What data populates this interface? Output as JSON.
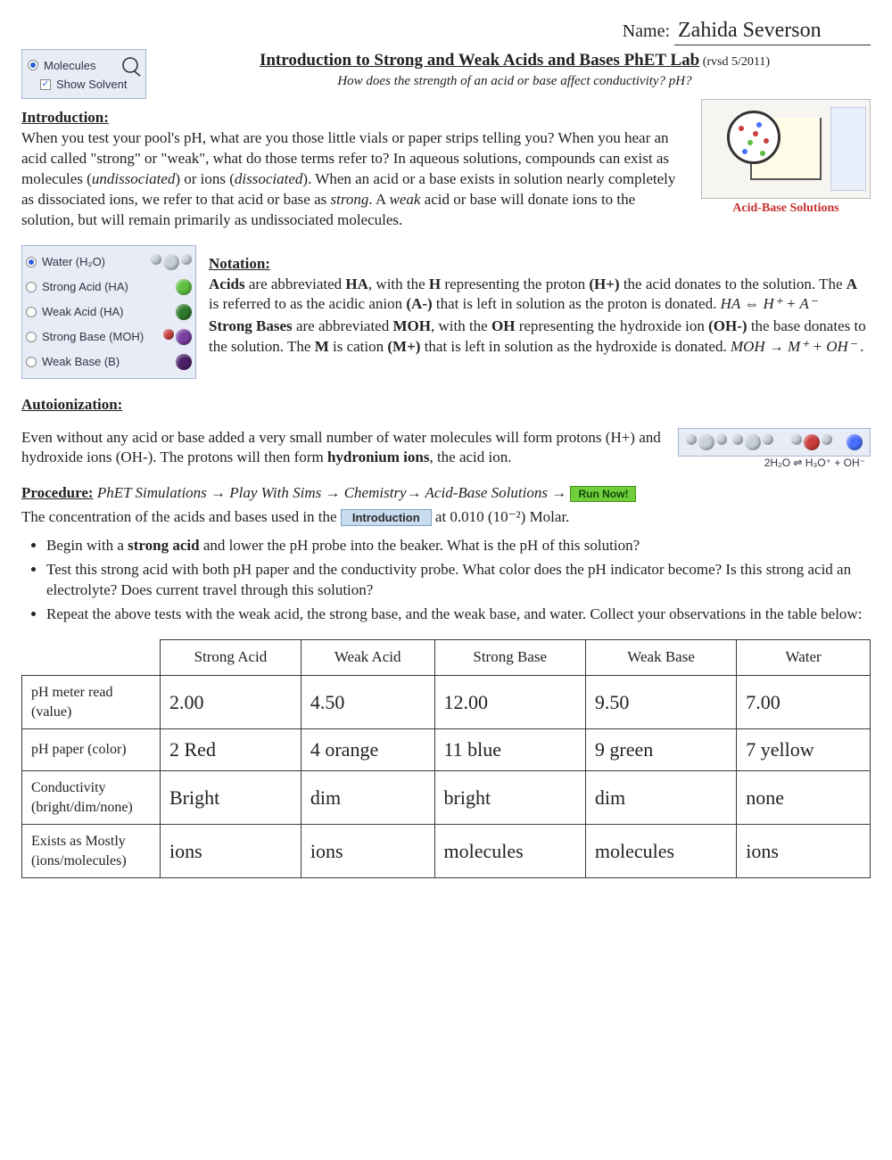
{
  "name_label": "Name:",
  "student_name": "Zahida Severson",
  "widget_top": {
    "molecules": "Molecules",
    "show_solvent": "Show Solvent"
  },
  "title": "Introduction to Strong and Weak Acids and Bases PhET Lab",
  "title_suffix": " (rvsd 5/2011)",
  "subtitle": "How does the strength of an acid or base affect conductivity? pH?",
  "sections": {
    "intro_head": "Introduction:",
    "notation_head": "Notation:",
    "auto_head": "Autoionization:",
    "proc_head": "Procedure:"
  },
  "intro_text": "When you test your pool's pH, what are you those little vials or paper strips telling you? When you hear an acid called \"strong\" or \"weak\", what do those terms refer to?  In aqueous solutions, compounds can exist as molecules (undissociated) or ions (dissociated).  When an acid or a base exists in solution nearly completely as dissociated ions, we refer to that acid or base as strong.  A weak acid or base will donate ions to the solution, but will remain primarily as undissociated molecules.",
  "thumb_label": "Acid-Base Solutions",
  "solutes": {
    "water": "Water (H₂O)",
    "strong_acid": "Strong Acid (HA)",
    "weak_acid": "Weak Acid (HA)",
    "strong_base": "Strong Base (MOH)",
    "weak_base": "Weak Base (B)"
  },
  "notation_p1a": "Acids",
  "notation_p1b": " are abbreviated ",
  "notation_p1c": "HA",
  "notation_p1d": ", with the ",
  "notation_p1e": "H",
  "notation_p1f": " representing the proton ",
  "notation_p1g": "(H+)",
  "notation_p1h": " the acid donates to the solution.  The ",
  "notation_p1i": "A",
  "notation_p1j": " is referred to as the acidic anion ",
  "notation_p1k": "(A-)",
  "notation_p1l": " that is left in solution as the proton is donated. ",
  "eq_ha": "HA ⇔ H⁺ + A⁻",
  "notation_p2a": "Strong Bases",
  "notation_p2b": " are abbreviated ",
  "notation_p2c": "MOH",
  "notation_p2d": ", with the ",
  "notation_p2e": "OH",
  "notation_p2f": " representing the hydroxide ion ",
  "notation_p2g": "(OH-)",
  "notation_p2h": " the base donates to the solution.  The ",
  "notation_p2i": "M",
  "notation_p2j": " is cation ",
  "notation_p2k": "(M+)",
  "notation_p2l": " that is left in solution as the hydroxide is donated. ",
  "eq_moh": "MOH → M⁺ + OH⁻",
  "auto_text_a": "Even without any acid or base added a very small number of water molecules will form protons (H+) and hydroxide ions (OH-).  The protons will then form ",
  "auto_text_b": "hydronium ions",
  "auto_text_c": ", the acid ion.",
  "mini_eq_text": "2H₂O  ⇌  H₃O⁺  +  OH⁻",
  "proc_path": "PhET Simulations → Play With Sims → Chemistry→ Acid-Base Solutions →",
  "run_now": "Run Now!",
  "proc_line2a": "The concentration of the acids and bases used in the ",
  "intro_tab": "Introduction",
  "proc_line2b": " at 0.010 (10⁻²) Molar.",
  "bullets": {
    "b1a": "Begin with a ",
    "b1b": "strong acid",
    "b1c": " and lower the pH probe into the beaker.  What is the pH of this solution?",
    "b2": "Test this strong acid with both pH paper and the conductivity probe.  What color does the pH indicator become?  Is this strong acid an electrolyte?  Does current travel through this solution?",
    "b3": "Repeat the above tests with the weak acid, the strong base, and the weak base, and water.  Collect your observations in the table below:"
  },
  "table": {
    "headers": [
      "",
      "Strong Acid",
      "Weak Acid",
      "Strong Base",
      "Weak Base",
      "Water"
    ],
    "rows": [
      {
        "label": "pH meter read (value)",
        "cells": [
          "2.00",
          "4.50",
          "12.00",
          "9.50",
          "7.00"
        ]
      },
      {
        "label": "pH paper (color)",
        "cells": [
          "2 Red",
          "4 orange",
          "11 blue",
          "9 green",
          "7 yellow"
        ]
      },
      {
        "label": "Conductivity (bright/dim/none)",
        "cells": [
          "Bright",
          "dim",
          "bright",
          "dim",
          "none"
        ]
      },
      {
        "label": "Exists as Mostly (ions/molecules)",
        "cells": [
          "ions",
          "ions",
          "molecules",
          "molecules",
          "ions"
        ]
      }
    ]
  },
  "colors": {
    "water": "#c8d0da",
    "green": "#5fbf3f",
    "darkgreen": "#2f7a2a",
    "purple": "#7a3fa0",
    "darkpurple": "#4a1f66",
    "red": "#cc3f3f",
    "blue": "#4a6fff"
  }
}
